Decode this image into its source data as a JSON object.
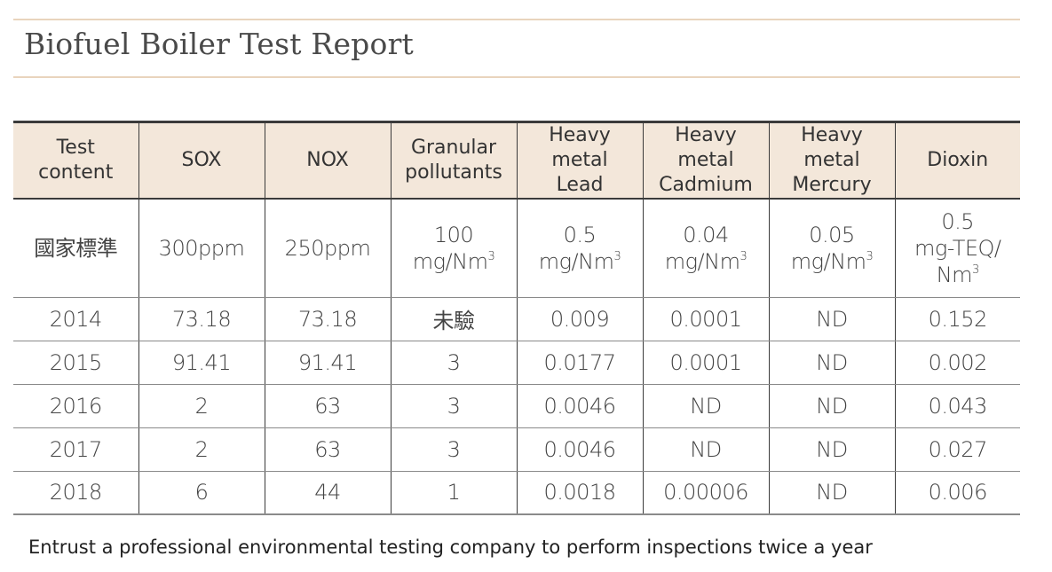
{
  "title": "Biofuel Boiler Test Report",
  "headers": [
    [
      "Test",
      "content"
    ],
    [
      "SOX"
    ],
    [
      "NOX"
    ],
    [
      "Granular",
      "pollutants"
    ],
    [
      "Heavy metal",
      "Lead"
    ],
    [
      "Heavy metal",
      "Cadmium"
    ],
    [
      "Heavy metal",
      "Mercury"
    ],
    [
      "Dioxin"
    ]
  ],
  "standard_row": {
    "label": "國家標準",
    "sox": "300ppm",
    "nox": "250ppm",
    "granular": {
      "value": "100",
      "unit": "mg/Nm",
      "exp": "3"
    },
    "lead": {
      "value": "0.5",
      "unit": "mg/Nm",
      "exp": "3"
    },
    "cadmium": {
      "value": "0.04",
      "unit": "mg/Nm",
      "exp": "3"
    },
    "mercury": {
      "value": "0.05",
      "unit": "mg/Nm",
      "exp": "3"
    },
    "dioxin": {
      "value": "0.5",
      "unit1": "mg-TEQ/",
      "unit2": "Nm",
      "exp": "3"
    }
  },
  "rows": [
    [
      "2014",
      "73.18",
      "73.18",
      "未驗",
      "0.009",
      "0.0001",
      "ND",
      "0.152"
    ],
    [
      "2015",
      "91.41",
      "91.41",
      "3",
      "0.0177",
      "0.0001",
      "ND",
      "0.002"
    ],
    [
      "2016",
      "2",
      "63",
      "3",
      "0.0046",
      "ND",
      "ND",
      "0.043"
    ],
    [
      "2017",
      "2",
      "63",
      "3",
      "0.0046",
      "ND",
      "ND",
      "0.027"
    ],
    [
      "2018",
      "6",
      "44",
      "1",
      "0.0018",
      "0.00006",
      "ND",
      "0.006"
    ]
  ],
  "footnote": "Entrust a professional environmental testing company to perform inspections twice a year"
}
